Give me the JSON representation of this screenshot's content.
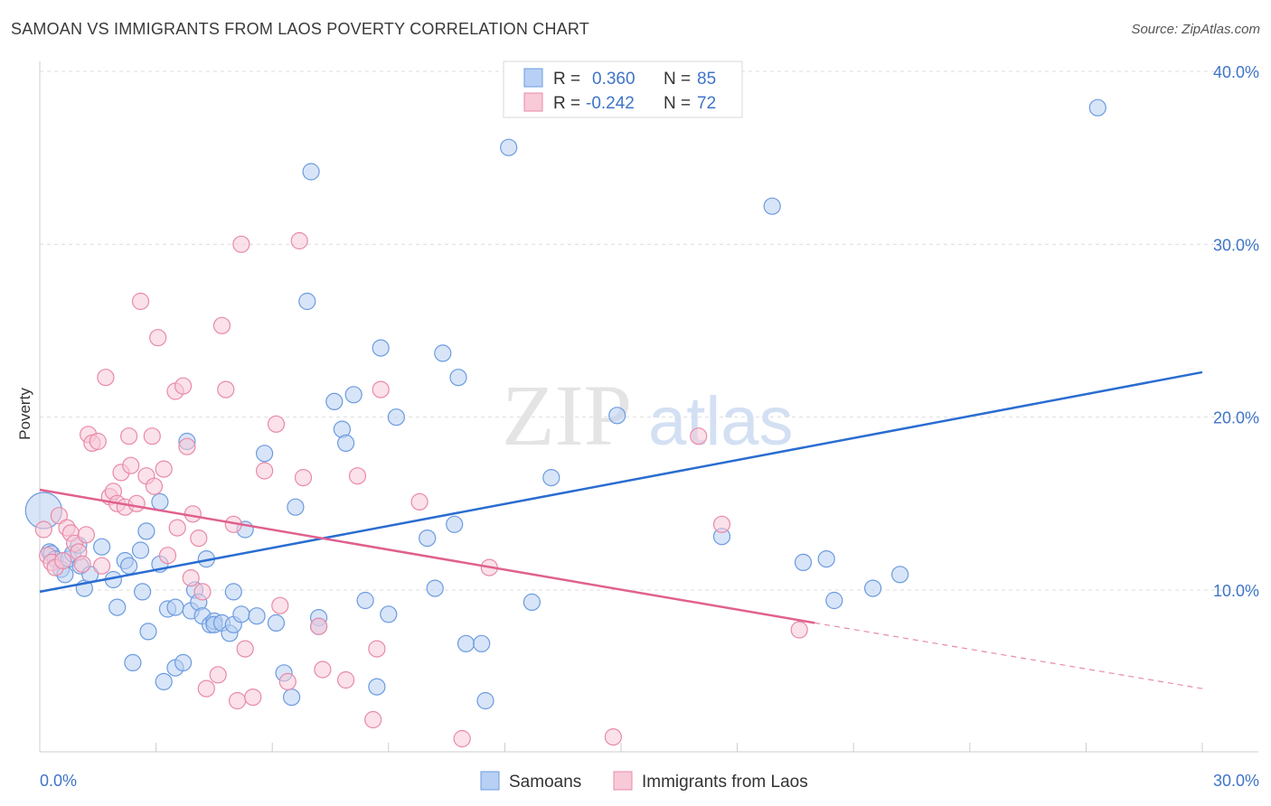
{
  "title": "SAMOAN VS IMMIGRANTS FROM LAOS POVERTY CORRELATION CHART",
  "source": "Source: ZipAtlas.com",
  "watermark": {
    "zip": "ZIP",
    "atlas": "atlas"
  },
  "legend": {
    "rows": [
      {
        "r_label": "R =",
        "r_value": "0.360",
        "n_label": "N =",
        "n_value": "85",
        "color": "#6c9be0",
        "fill": "#b8d0f3"
      },
      {
        "r_label": "R =",
        "r_value": "-0.242",
        "n_label": "N =",
        "n_value": "72",
        "color": "#e88aa8",
        "fill": "#f8c9d7"
      }
    ]
  },
  "bottom_legend": {
    "items": [
      {
        "label": "Samoans",
        "fill": "#b8d0f3",
        "stroke": "#6c9be0"
      },
      {
        "label": "Immigrants from Laos",
        "fill": "#f8c9d7",
        "stroke": "#e88aa8"
      }
    ]
  },
  "chart_data": {
    "type": "scatter",
    "title": "SAMOAN VS IMMIGRANTS FROM LAOS POVERTY CORRELATION CHART",
    "xlabel": "",
    "ylabel": "Poverty",
    "xlim": [
      0,
      30
    ],
    "ylim": [
      0,
      41
    ],
    "x_tick_labels": [
      {
        "value": 0,
        "label": "0.0%"
      },
      {
        "value": 30,
        "label": "30.0%"
      }
    ],
    "y_tick_labels": [
      {
        "value": 10,
        "label": "10.0%"
      },
      {
        "value": 20,
        "label": "20.0%"
      },
      {
        "value": 30,
        "label": "30.0%"
      },
      {
        "value": 40,
        "label": "40.0%"
      }
    ],
    "grid": true,
    "legend_position": "top-center",
    "series": [
      {
        "name": "Samoans",
        "color": "#6c9be0",
        "fill": "#b8d0f3",
        "trend": {
          "x": [
            0,
            30
          ],
          "y": [
            9.9,
            22.6
          ]
        },
        "points": [
          [
            0.1,
            14.6
          ],
          [
            0.25,
            12.2
          ],
          [
            0.3,
            12.1
          ],
          [
            0.4,
            11.8
          ],
          [
            0.55,
            11.2
          ],
          [
            0.65,
            10.9
          ],
          [
            0.75,
            11.8
          ],
          [
            0.85,
            12.1
          ],
          [
            1.0,
            12.6
          ],
          [
            1.05,
            11.4
          ],
          [
            1.15,
            10.1
          ],
          [
            1.3,
            10.9
          ],
          [
            1.6,
            12.5
          ],
          [
            1.9,
            10.6
          ],
          [
            2.0,
            9.0
          ],
          [
            2.2,
            11.7
          ],
          [
            2.3,
            11.4
          ],
          [
            2.4,
            5.8
          ],
          [
            2.6,
            12.3
          ],
          [
            2.65,
            9.9
          ],
          [
            2.75,
            13.4
          ],
          [
            2.8,
            7.6
          ],
          [
            3.1,
            11.5
          ],
          [
            3.2,
            4.7
          ],
          [
            3.1,
            15.1
          ],
          [
            3.3,
            8.9
          ],
          [
            3.5,
            9.0
          ],
          [
            3.5,
            5.5
          ],
          [
            3.7,
            5.8
          ],
          [
            3.8,
            18.6
          ],
          [
            3.9,
            8.8
          ],
          [
            4.0,
            10.0
          ],
          [
            4.1,
            9.3
          ],
          [
            4.2,
            8.5
          ],
          [
            4.3,
            11.8
          ],
          [
            4.4,
            8.0
          ],
          [
            4.5,
            8.2
          ],
          [
            4.5,
            8.0
          ],
          [
            4.7,
            8.1
          ],
          [
            4.9,
            7.5
          ],
          [
            5.0,
            8.0
          ],
          [
            5.0,
            9.9
          ],
          [
            5.2,
            8.6
          ],
          [
            5.3,
            13.5
          ],
          [
            5.6,
            8.5
          ],
          [
            5.8,
            17.9
          ],
          [
            6.1,
            8.1
          ],
          [
            6.3,
            5.2
          ],
          [
            6.6,
            14.8
          ],
          [
            6.5,
            3.8
          ],
          [
            6.9,
            26.7
          ],
          [
            7.0,
            34.2
          ],
          [
            7.2,
            8.4
          ],
          [
            7.2,
            7.9
          ],
          [
            7.6,
            20.9
          ],
          [
            7.8,
            19.3
          ],
          [
            7.9,
            18.5
          ],
          [
            8.1,
            21.3
          ],
          [
            8.4,
            9.4
          ],
          [
            8.7,
            4.4
          ],
          [
            8.8,
            24.0
          ],
          [
            9.0,
            8.6
          ],
          [
            9.2,
            20.0
          ],
          [
            10.0,
            13.0
          ],
          [
            10.2,
            10.1
          ],
          [
            10.4,
            23.7
          ],
          [
            10.7,
            13.8
          ],
          [
            10.8,
            22.3
          ],
          [
            11.0,
            6.9
          ],
          [
            11.4,
            6.9
          ],
          [
            11.5,
            3.6
          ],
          [
            12.1,
            35.6
          ],
          [
            12.7,
            9.3
          ],
          [
            13.2,
            16.5
          ],
          [
            14.9,
            20.1
          ],
          [
            17.6,
            13.1
          ],
          [
            18.9,
            32.2
          ],
          [
            19.7,
            11.6
          ],
          [
            20.3,
            11.8
          ],
          [
            20.5,
            9.4
          ],
          [
            21.5,
            10.1
          ],
          [
            22.2,
            10.9
          ],
          [
            27.3,
            37.9
          ]
        ]
      },
      {
        "name": "Immigrants from Laos",
        "color": "#e88aa8",
        "fill": "#f8c9d7",
        "trend": {
          "x": [
            0,
            20
          ],
          "y": [
            15.8,
            8.1
          ]
        },
        "trend_dashed": {
          "x": [
            20,
            30
          ],
          "y": [
            8.1,
            4.3
          ]
        },
        "points": [
          [
            0.1,
            13.5
          ],
          [
            0.2,
            12.0
          ],
          [
            0.3,
            11.6
          ],
          [
            0.4,
            11.3
          ],
          [
            0.5,
            14.3
          ],
          [
            0.6,
            11.7
          ],
          [
            0.7,
            13.6
          ],
          [
            0.8,
            13.3
          ],
          [
            0.9,
            12.7
          ],
          [
            1.0,
            12.2
          ],
          [
            1.1,
            11.5
          ],
          [
            1.2,
            13.2
          ],
          [
            1.25,
            19.0
          ],
          [
            1.35,
            18.5
          ],
          [
            1.5,
            18.6
          ],
          [
            1.6,
            11.4
          ],
          [
            1.7,
            22.3
          ],
          [
            1.8,
            15.4
          ],
          [
            1.9,
            15.7
          ],
          [
            2.0,
            15.0
          ],
          [
            2.1,
            16.8
          ],
          [
            2.2,
            14.8
          ],
          [
            2.3,
            18.9
          ],
          [
            2.35,
            17.2
          ],
          [
            2.5,
            15.0
          ],
          [
            2.6,
            26.7
          ],
          [
            2.75,
            16.6
          ],
          [
            2.9,
            18.9
          ],
          [
            2.95,
            16.0
          ],
          [
            3.05,
            24.6
          ],
          [
            3.2,
            17.0
          ],
          [
            3.3,
            12.0
          ],
          [
            3.5,
            21.5
          ],
          [
            3.55,
            13.6
          ],
          [
            3.7,
            21.8
          ],
          [
            3.8,
            18.3
          ],
          [
            3.9,
            10.7
          ],
          [
            3.95,
            14.4
          ],
          [
            4.1,
            13.0
          ],
          [
            4.2,
            9.9
          ],
          [
            4.3,
            4.3
          ],
          [
            4.6,
            5.1
          ],
          [
            4.7,
            25.3
          ],
          [
            4.8,
            21.6
          ],
          [
            5.0,
            13.8
          ],
          [
            5.1,
            3.6
          ],
          [
            5.2,
            30.0
          ],
          [
            5.3,
            6.6
          ],
          [
            5.5,
            3.8
          ],
          [
            5.8,
            16.9
          ],
          [
            6.1,
            19.6
          ],
          [
            6.2,
            9.1
          ],
          [
            6.4,
            4.7
          ],
          [
            6.7,
            30.2
          ],
          [
            6.8,
            16.5
          ],
          [
            7.2,
            7.9
          ],
          [
            7.3,
            5.4
          ],
          [
            7.9,
            4.8
          ],
          [
            8.2,
            16.6
          ],
          [
            8.6,
            2.5
          ],
          [
            8.7,
            6.6
          ],
          [
            8.8,
            21.6
          ],
          [
            9.8,
            15.1
          ],
          [
            10.9,
            1.4
          ],
          [
            11.6,
            11.3
          ],
          [
            14.8,
            1.5
          ],
          [
            17.0,
            18.9
          ],
          [
            17.6,
            13.8
          ],
          [
            19.6,
            7.7
          ]
        ]
      }
    ]
  }
}
